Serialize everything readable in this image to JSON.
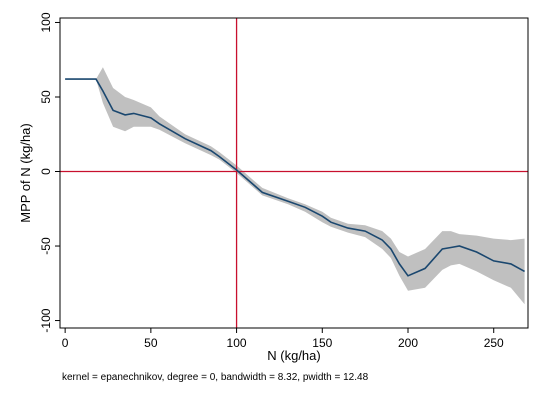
{
  "chart_data": {
    "type": "line",
    "title": "",
    "xlabel": "N (kg/ha)",
    "ylabel": "MPP of N (kg/ha)",
    "xlim": [
      -3,
      270
    ],
    "ylim": [
      -105,
      103
    ],
    "x_ticks": [
      0,
      50,
      100,
      150,
      200,
      250
    ],
    "y_ticks": [
      100,
      50,
      0,
      -50,
      -100
    ],
    "x_tick_labels": [
      "0",
      "50",
      "100",
      "150",
      "200",
      "250"
    ],
    "y_tick_labels": [
      "100",
      "50",
      "0",
      "-50",
      "-100"
    ],
    "grid": false,
    "note": "kernel = epanechnikov, degree = 0, bandwidth = 8.32, pwidth = 12.48",
    "reference_lines": {
      "x": 100,
      "y": 0,
      "color": "#c8102e"
    },
    "colors": {
      "line": "#1a476f",
      "band": "#c0c0c0",
      "reference": "#c8102e"
    },
    "series": [
      {
        "x": [
          0,
          18,
          22,
          28,
          35,
          40,
          50,
          55,
          70,
          85,
          90,
          100,
          110,
          115,
          130,
          140,
          150,
          155,
          165,
          175,
          185,
          190,
          195,
          200,
          210,
          220,
          225,
          230,
          240,
          250,
          260,
          268
        ],
        "y": [
          62,
          62,
          54,
          41,
          38,
          39,
          36,
          32,
          22,
          14,
          10,
          1,
          -9,
          -14,
          -20,
          -24,
          -30,
          -34,
          -38,
          -40,
          -46,
          -52,
          -62,
          -70,
          -65,
          -52,
          -51,
          -50,
          -54,
          -60,
          -62,
          -67
        ],
        "lower": [
          62,
          62,
          46,
          30,
          27,
          30,
          30,
          28,
          19,
          11,
          8,
          -1,
          -11,
          -16,
          -22,
          -27,
          -34,
          -37,
          -41,
          -44,
          -52,
          -58,
          -70,
          -80,
          -78,
          -66,
          -63,
          -62,
          -67,
          -73,
          -78,
          -89
        ],
        "upper": [
          62,
          62,
          70,
          56,
          50,
          48,
          43,
          37,
          25,
          17,
          13,
          4,
          -6,
          -11,
          -18,
          -22,
          -27,
          -31,
          -35,
          -36,
          -40,
          -45,
          -54,
          -57,
          -52,
          -40,
          -40,
          -42,
          -43,
          -45,
          -46,
          -45
        ]
      }
    ]
  }
}
